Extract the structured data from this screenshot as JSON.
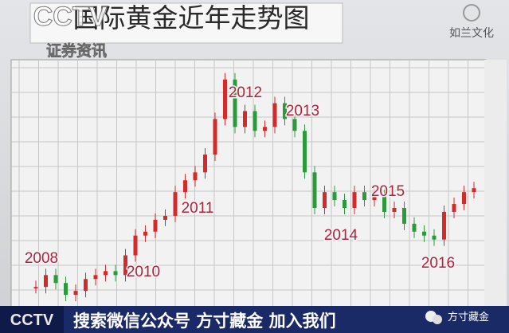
{
  "header": {
    "title": "国际黄金近年走势图",
    "channel_logo": "CCTV",
    "channel_name": "证券资讯",
    "corner_logo": "如兰文化"
  },
  "chart": {
    "type": "candlestick",
    "values": [
      800,
      860,
      820,
      760,
      780,
      840,
      860,
      880,
      860,
      960,
      1060,
      1080,
      1140,
      1160,
      1280,
      1340,
      1380,
      1470,
      1650,
      1850,
      1610,
      1690,
      1590,
      1610,
      1730,
      1650,
      1590,
      1380,
      1200,
      1280,
      1240,
      1200,
      1280,
      1240,
      1260,
      1180,
      1200,
      1120,
      1080,
      1060,
      1040,
      1180,
      1220,
      1280,
      1300
    ],
    "ylim": [
      700,
      1950
    ],
    "year_labels": [
      "2008",
      "2010",
      "2011",
      "2012",
      "2013",
      "2014",
      "2015",
      "2016"
    ]
  },
  "banner": {
    "logo": "CCTV",
    "text": "搜索微信公众号  方寸藏金  加入我们",
    "account": "方寸藏金"
  }
}
